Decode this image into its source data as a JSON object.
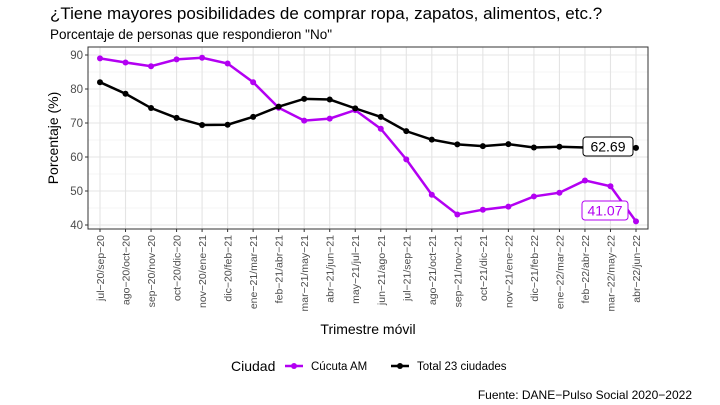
{
  "chart_data": {
    "type": "line",
    "title": "¿Tiene mayores posibilidades de comprar ropa, zapatos, alimentos, etc.?",
    "subtitle": "Porcentaje de personas que respondieron \"No\"",
    "xlabel": "Trimestre móvil",
    "ylabel": "Porcentaje (%)",
    "ylim": [
      40,
      90
    ],
    "yticks": [
      40,
      50,
      60,
      70,
      80,
      90
    ],
    "grid": true,
    "legend_position": "bottom",
    "legend_title": "Ciudad",
    "categories": [
      "jul−20/sep−20",
      "ago−20/oct−20",
      "sep−20/nov−20",
      "oct−20/dic−20",
      "nov−20/ene−21",
      "dic−20/feb−21",
      "ene−21/mar−21",
      "feb−21/abr−21",
      "mar−21/may−21",
      "abr−21/jun−21",
      "may−21/jul−21",
      "jun−21/ago−21",
      "jul−21/sep−21",
      "ago−21/oct−21",
      "sep−21/nov−21",
      "oct−21/dic−21",
      "nov−21/ene−22",
      "dic−21/feb−22",
      "ene−22/mar−22",
      "feb−22/abr−22",
      "mar−22/may−22",
      "abr−22/jun−22"
    ],
    "series": [
      {
        "name": "Cúcuta AM",
        "color": "#b300f2",
        "values": [
          89.0,
          87.8,
          86.7,
          88.7,
          89.2,
          87.5,
          82.0,
          74.5,
          70.7,
          71.3,
          73.8,
          68.3,
          59.3,
          48.9,
          43.1,
          44.5,
          45.4,
          48.4,
          49.5,
          53.1,
          51.4,
          41.07
        ],
        "end_label": "41.07"
      },
      {
        "name": "Total 23 ciudades",
        "color": "#000000",
        "values": [
          82.0,
          78.6,
          74.4,
          71.5,
          69.4,
          69.5,
          71.8,
          74.8,
          77.1,
          76.9,
          74.3,
          71.8,
          67.6,
          65.1,
          63.7,
          63.2,
          63.8,
          62.8,
          63.0,
          62.8,
          62.7,
          62.69
        ],
        "end_label": "62.69"
      }
    ],
    "source": "Fuente: DANE−Pulso Social 2020−2022"
  }
}
